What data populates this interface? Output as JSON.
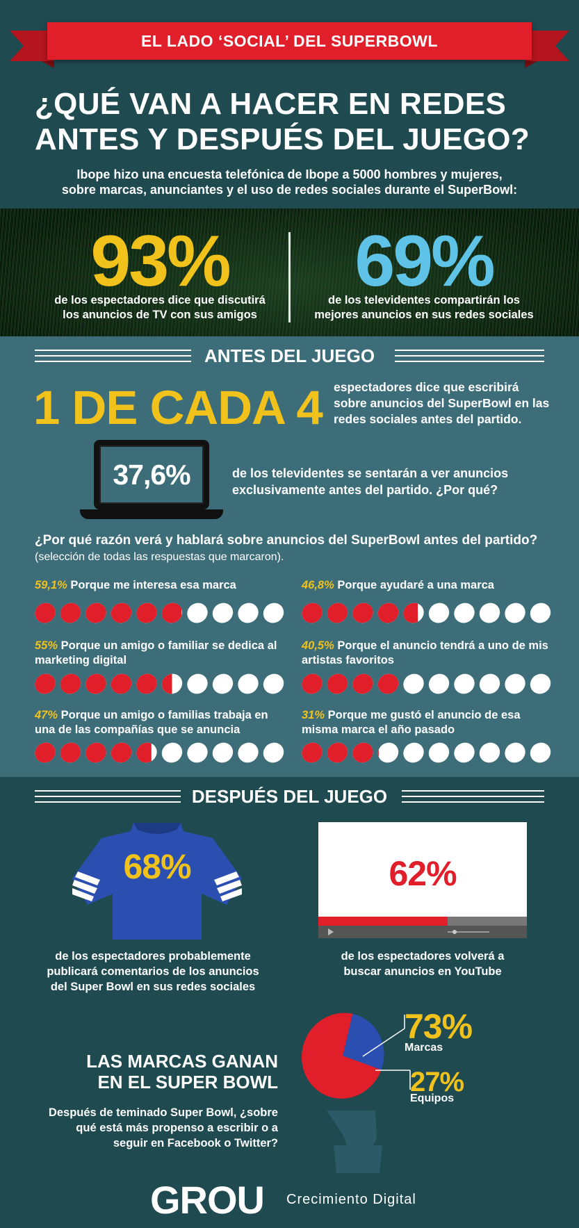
{
  "header": {
    "ribbon_title": "EL LADO ‘SOCIAL’ DEL SUPERBOWL",
    "title_line1": "¿QUÉ VAN A HACER EN REDES",
    "title_line2": "ANTES Y DESPUÉS DEL JUEGO?",
    "intro_line1": "Ibope hizo una encuesta telefónica de Ibope a 5000 hombres y mujeres,",
    "intro_line2": "sobre marcas, anunciantes y el uso de redes sociales durante el SuperBowl:"
  },
  "top_stats": {
    "left": {
      "value": "93%",
      "line1": "de los espectadores dice que discutirá",
      "line2": "los anuncios de TV con sus amigos"
    },
    "right": {
      "value": "69%",
      "line1": "de los televidentes compartirán los",
      "line2": "mejores anuncios en sus redes sociales"
    }
  },
  "antes": {
    "heading": "ANTES DEL JUEGO",
    "one_of_four": "1 DE CADA 4",
    "one_of_four_line1": "espectadores dice que escribirá",
    "one_of_four_line2": "sobre anuncios del SuperBowl en las",
    "one_of_four_line3": "redes sociales antes del partido.",
    "laptop_value": "37,6%",
    "laptop_line1": "de los televidentes se sentarán a ver anuncios",
    "laptop_line2": "exclusivamente antes del partido. ¿Por qué?",
    "question_bold": "¿Por qué razón verá y hablará sobre anuncios del SuperBowl antes del partido?",
    "question_note": "(selección de todas las respuestas que marcaron).",
    "reasons": [
      {
        "pct": "59,1%",
        "text": "Porque me interesa esa marca",
        "fraction": 0.591
      },
      {
        "pct": "46,8%",
        "text": "Porque ayudaré a una marca",
        "fraction": 0.468
      },
      {
        "pct": "55%",
        "text": "Porque un amigo o familiar se dedica al marketing digital",
        "fraction": 0.55
      },
      {
        "pct": "40,5%",
        "text": "Porque el anuncio tendrá a uno de mis artistas favoritos",
        "fraction": 0.405
      },
      {
        "pct": "47%",
        "text": "Porque un amigo o familias trabaja en una de las compañías que se anuncia",
        "fraction": 0.47
      },
      {
        "pct": "31%",
        "text": "Porque me gustó el anuncio de esa misma marca el año pasado",
        "fraction": 0.31
      }
    ]
  },
  "despues": {
    "heading": "DESPUÉS DEL JUEGO",
    "jersey_value": "68%",
    "jersey_line1": "de los espectadores probablemente",
    "jersey_line2": "publicará comentarios de los anuncios",
    "jersey_line3": "del Super Bowl en sus redes sociales",
    "video_value": "62%",
    "video_progress": 0.62,
    "video_line1": "de los espectadores volverá a",
    "video_line2": "buscar anuncios en YouTube",
    "marcas_title_line1": "LAS MARCAS GANAN",
    "marcas_title_line2": "EN EL SUPER BOWL",
    "marcas_line1": "Después de teminado Super Bowl, ¿sobre",
    "marcas_line2": "qué está más propenso a escribir o a",
    "marcas_line3": "seguir en Facebook o Twitter?",
    "pie": [
      {
        "value": "73%",
        "label": "Marcas",
        "fraction": 0.73,
        "color": "#e01f2a"
      },
      {
        "value": "27%",
        "label": "Equipos",
        "fraction": 0.27,
        "color": "#2a4fb0"
      }
    ]
  },
  "footer": {
    "logo": "GROU",
    "tagline": "Crecimiento Digital"
  },
  "colors": {
    "yellow": "#f0c21b",
    "cyan": "#5fc3e8",
    "red": "#e01f2a",
    "blue": "#2a4fb0",
    "teal_dark": "#1e4a50",
    "teal_mid": "#3d6d79"
  }
}
